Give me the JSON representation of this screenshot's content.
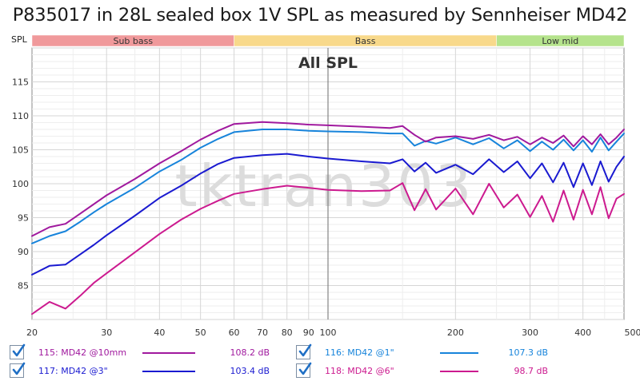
{
  "header": {
    "title": "P835017 in 28L sealed box 1V SPL as measured by Sennheiser MD42"
  },
  "chart_data": {
    "type": "line",
    "title": "All SPL",
    "watermark": "tktran303",
    "x_scale": "log",
    "xlim": [
      20,
      500
    ],
    "ylim": [
      80,
      120
    ],
    "x_unit": "Hz",
    "x_ticks": [
      20,
      30,
      40,
      50,
      60,
      70,
      80,
      90,
      100,
      200,
      300,
      400,
      500
    ],
    "x_tick_labels": [
      "20",
      "30",
      "40",
      "50",
      "60",
      "70",
      "80",
      "90",
      "100",
      "200",
      "300",
      "400",
      "500Hz"
    ],
    "y_ticks": [
      85,
      90,
      95,
      100,
      105,
      110,
      115
    ],
    "y_axis_label": "SPL",
    "bands": [
      {
        "label": "Sub bass",
        "from": 20,
        "to": 60,
        "color": "#f0999b"
      },
      {
        "label": "Bass",
        "from": 60,
        "to": 250,
        "color": "#f8d98b"
      },
      {
        "label": "Low mid",
        "from": 250,
        "to": 500,
        "color": "#b5e38c"
      }
    ],
    "marker_x": 100,
    "series": [
      {
        "name": "115: MD42 @10mm",
        "value_label": "108.2 dB",
        "color": "#a0199e",
        "x": [
          20,
          22,
          24,
          26,
          28,
          30,
          35,
          40,
          45,
          50,
          55,
          60,
          70,
          80,
          90,
          100,
          120,
          140,
          150,
          160,
          170,
          180,
          200,
          220,
          240,
          260,
          280,
          300,
          320,
          340,
          360,
          380,
          400,
          420,
          440,
          460,
          480,
          500
        ],
        "y": [
          92.3,
          93.6,
          94.1,
          95.6,
          97.0,
          98.3,
          100.7,
          103.0,
          104.8,
          106.5,
          107.8,
          108.8,
          109.1,
          108.9,
          108.7,
          108.6,
          108.4,
          108.2,
          108.5,
          107.2,
          106.2,
          106.8,
          107.0,
          106.6,
          107.2,
          106.4,
          106.9,
          105.8,
          106.8,
          106.0,
          107.1,
          105.5,
          107.0,
          105.8,
          107.3,
          105.8,
          106.8,
          108.0
        ]
      },
      {
        "name": "116: MD42 @1\"",
        "value_label": "107.3 dB",
        "color": "#1784db",
        "x": [
          20,
          22,
          24,
          26,
          28,
          30,
          35,
          40,
          45,
          50,
          55,
          60,
          70,
          80,
          90,
          100,
          120,
          140,
          150,
          160,
          170,
          180,
          200,
          220,
          240,
          260,
          280,
          300,
          320,
          340,
          360,
          380,
          400,
          420,
          440,
          460,
          480,
          500
        ],
        "y": [
          91.2,
          92.3,
          93.0,
          94.4,
          95.8,
          97.0,
          99.4,
          101.8,
          103.5,
          105.3,
          106.6,
          107.6,
          108.0,
          108.0,
          107.8,
          107.7,
          107.6,
          107.4,
          107.4,
          105.6,
          106.3,
          105.9,
          106.8,
          105.8,
          106.7,
          105.2,
          106.4,
          104.8,
          106.2,
          105.0,
          106.5,
          104.9,
          106.4,
          104.7,
          106.8,
          104.9,
          106.2,
          107.4
        ]
      },
      {
        "name": "117: MD42 @3\"",
        "value_label": "103.4 dB",
        "color": "#1a1ad0",
        "x": [
          20,
          22,
          24,
          26,
          28,
          30,
          35,
          40,
          45,
          50,
          55,
          60,
          70,
          80,
          90,
          100,
          120,
          140,
          150,
          160,
          170,
          180,
          200,
          220,
          240,
          260,
          280,
          300,
          320,
          340,
          360,
          380,
          400,
          420,
          440,
          460,
          480,
          500
        ],
        "y": [
          86.6,
          87.9,
          88.1,
          89.6,
          91.0,
          92.4,
          95.3,
          97.9,
          99.7,
          101.5,
          102.9,
          103.8,
          104.2,
          104.4,
          104.0,
          103.7,
          103.3,
          103.0,
          103.6,
          101.8,
          103.1,
          101.6,
          102.8,
          101.4,
          103.6,
          101.7,
          103.3,
          100.8,
          103.0,
          100.2,
          103.1,
          99.5,
          103.0,
          99.8,
          103.3,
          100.3,
          102.5,
          104.0
        ]
      },
      {
        "name": "118: MD42 @6\"",
        "value_label": "98.7 dB",
        "color": "#cc1a8f",
        "x": [
          20,
          22,
          24,
          26,
          28,
          30,
          35,
          40,
          45,
          50,
          55,
          60,
          70,
          80,
          90,
          100,
          120,
          140,
          150,
          160,
          170,
          180,
          200,
          220,
          240,
          260,
          280,
          300,
          320,
          340,
          360,
          380,
          400,
          420,
          440,
          460,
          480,
          500
        ],
        "y": [
          80.8,
          82.6,
          81.6,
          83.5,
          85.4,
          86.8,
          89.9,
          92.6,
          94.7,
          96.3,
          97.5,
          98.5,
          99.2,
          99.7,
          99.4,
          99.1,
          98.9,
          99.0,
          100.1,
          96.1,
          99.2,
          96.2,
          99.3,
          95.5,
          100.0,
          96.5,
          98.4,
          95.1,
          98.2,
          94.4,
          99.0,
          94.7,
          99.1,
          95.5,
          99.5,
          94.9,
          97.8,
          98.5
        ]
      }
    ]
  },
  "legend": {
    "items": [
      {
        "label": "115: MD42 @10mm",
        "value": "108.2 dB",
        "checked": true
      },
      {
        "label": "116: MD42 @1\"",
        "value": "107.3 dB",
        "checked": true
      },
      {
        "label": "117: MD42 @3\"",
        "value": "103.4 dB",
        "checked": true
      },
      {
        "label": "118: MD42 @6\"",
        "value": "98.7 dB",
        "checked": true
      }
    ]
  }
}
